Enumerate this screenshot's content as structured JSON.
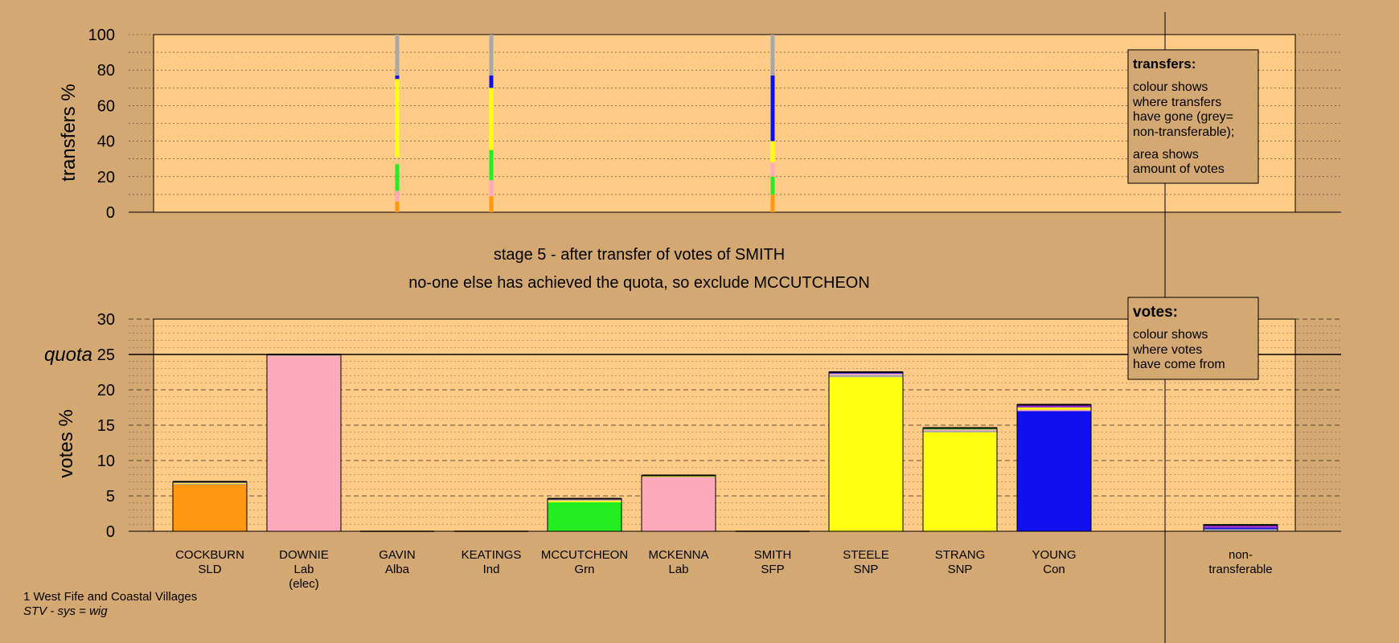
{
  "colors": {
    "page_bg": "#d4a872",
    "panel_bg": "#ffcc88",
    "orange": "#ff9810",
    "pink": "#ffaabb",
    "green": "#22ee22",
    "yellow": "#ffff11",
    "blue": "#1010ee",
    "grey": "#a8a8a8",
    "purple": "#9933cc"
  },
  "titles": {
    "line1": "stage 5 - after transfer of votes of SMITH",
    "line2": "no-one else has achieved the quota, so exclude MCCUTCHEON"
  },
  "footer": {
    "line1": "1 West Fife and Coastal Villages",
    "line2": "STV - sys = wig"
  },
  "legends": {
    "transfers": {
      "heading": "transfers:",
      "lines": [
        "colour shows",
        "where transfers",
        "have gone (grey=",
        "non-transferable);"
      ],
      "lines2": [
        "area shows",
        "amount of votes"
      ]
    },
    "votes": {
      "heading": "votes:",
      "lines": [
        "colour shows",
        "where votes",
        "have come from"
      ]
    }
  },
  "chart_data": [
    {
      "type": "bar",
      "name": "transfers",
      "ylabel": "transfers %",
      "ylim": [
        0,
        100
      ],
      "yticks": [
        0,
        20,
        40,
        60,
        80,
        100
      ],
      "grid": true,
      "columns": [
        {
          "candidate": "GAVIN",
          "segments": [
            {
              "color": "orange",
              "from": 0,
              "to": 6
            },
            {
              "color": "pink",
              "from": 6,
              "to": 12
            },
            {
              "color": "green",
              "from": 12,
              "to": 27
            },
            {
              "color": "yellow",
              "from": 31,
              "to": 75
            },
            {
              "color": "blue",
              "from": 75,
              "to": 77
            },
            {
              "color": "grey",
              "from": 77,
              "to": 100
            }
          ]
        },
        {
          "candidate": "KEATINGS",
          "segments": [
            {
              "color": "orange",
              "from": 0,
              "to": 9
            },
            {
              "color": "pink",
              "from": 9,
              "to": 18
            },
            {
              "color": "green",
              "from": 18,
              "to": 35
            },
            {
              "color": "yellow",
              "from": 35,
              "to": 70
            },
            {
              "color": "blue",
              "from": 70,
              "to": 77
            },
            {
              "color": "grey",
              "from": 77,
              "to": 100
            }
          ]
        },
        {
          "candidate": "SMITH",
          "segments": [
            {
              "color": "orange",
              "from": 0,
              "to": 10
            },
            {
              "color": "green",
              "from": 10,
              "to": 20
            },
            {
              "color": "pink",
              "from": 20,
              "to": 28
            },
            {
              "color": "yellow",
              "from": 28,
              "to": 40
            },
            {
              "color": "blue",
              "from": 40,
              "to": 77
            },
            {
              "color": "grey",
              "from": 77,
              "to": 100
            }
          ]
        }
      ]
    },
    {
      "type": "bar",
      "name": "votes",
      "ylabel": "votes %",
      "ylim": [
        0,
        30
      ],
      "yticks": [
        0,
        5,
        10,
        15,
        20,
        25,
        30
      ],
      "quota": 25,
      "quota_label": "quota",
      "grid": true,
      "categories": [
        "COCKBURN",
        "DOWNIE",
        "GAVIN",
        "KEATINGS",
        "MCCUTCHEON",
        "MCKENNA",
        "SMITH",
        "STEELE",
        "STRANG",
        "YOUNG",
        "non-transferable"
      ],
      "parties": [
        "SLD",
        "Lab",
        "Alba",
        "Ind",
        "Grn",
        "Lab",
        "SFP",
        "SNP",
        "SNP",
        "Con",
        ""
      ],
      "status": [
        "",
        "(elec)",
        "",
        "",
        "",
        "",
        "",
        "",
        "",
        "",
        ""
      ],
      "name_lines": [
        [
          "COCKBURN"
        ],
        [
          "DOWNIE"
        ],
        [
          "GAVIN"
        ],
        [
          "KEATINGS"
        ],
        [
          "MCCUTCHEON"
        ],
        [
          "MCKENNA"
        ],
        [
          "SMITH"
        ],
        [
          "STEELE"
        ],
        [
          "STRANG"
        ],
        [
          "YOUNG"
        ],
        [
          "non-",
          "transferable"
        ]
      ],
      "values": [
        7.0,
        25.0,
        0,
        0,
        4.6,
        7.9,
        0,
        22.5,
        14.6,
        17.9,
        0.9
      ],
      "bars": [
        {
          "segments": [
            {
              "color": "orange",
              "value": 6.6
            },
            {
              "color": "grey",
              "value": 0.1
            },
            {
              "color": "yellow",
              "value": 0.1
            },
            {
              "color": "pink",
              "value": 0.1
            },
            {
              "color": "green",
              "value": 0.1
            }
          ]
        },
        {
          "segments": [
            {
              "color": "pink",
              "value": 24.8
            },
            {
              "color": "grey",
              "value": 0.2
            }
          ]
        },
        {
          "segments": []
        },
        {
          "segments": []
        },
        {
          "segments": [
            {
              "color": "green",
              "value": 4.1
            },
            {
              "color": "yellow",
              "value": 0.2
            },
            {
              "color": "pink",
              "value": 0.1
            },
            {
              "color": "grey",
              "value": 0.2
            }
          ]
        },
        {
          "segments": [
            {
              "color": "pink",
              "value": 7.6
            },
            {
              "color": "grey",
              "value": 0.1
            },
            {
              "color": "yellow",
              "value": 0.1
            },
            {
              "color": "green",
              "value": 0.1
            }
          ]
        },
        {
          "segments": []
        },
        {
          "segments": [
            {
              "color": "yellow",
              "value": 21.8
            },
            {
              "color": "grey",
              "value": 0.3
            },
            {
              "color": "pink",
              "value": 0.2
            },
            {
              "color": "blue",
              "value": 0.2
            }
          ]
        },
        {
          "segments": [
            {
              "color": "yellow",
              "value": 14.0
            },
            {
              "color": "grey",
              "value": 0.2
            },
            {
              "color": "pink",
              "value": 0.2
            },
            {
              "color": "green",
              "value": 0.2
            }
          ]
        },
        {
          "segments": [
            {
              "color": "blue",
              "value": 17.0
            },
            {
              "color": "pink",
              "value": 0.2
            },
            {
              "color": "yellow",
              "value": 0.3
            },
            {
              "color": "purple",
              "value": 0.4
            }
          ]
        },
        {
          "segments": [
            {
              "color": "grey",
              "value": 0.3
            },
            {
              "color": "blue",
              "value": 0.2
            },
            {
              "color": "purple",
              "value": 0.4
            }
          ]
        }
      ]
    }
  ]
}
